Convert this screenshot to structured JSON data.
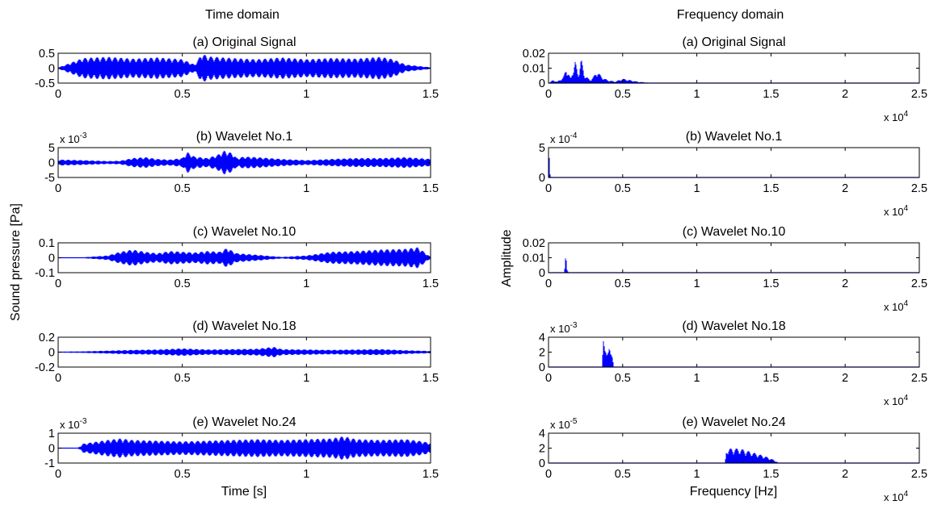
{
  "headers": {
    "time": "Time domain",
    "frequency": "Frequency domain"
  },
  "axis_labels": {
    "time_y": "Sound pressure [Pa]",
    "time_x": "Time [s]",
    "freq_y": "Amplitude",
    "freq_x": "Frequency [Hz]"
  },
  "colors": {
    "signal": "#0000ff",
    "axes": "#000000"
  },
  "chart_data": [
    {
      "type": "area",
      "panel": "time",
      "title": "(a) Original Signal",
      "multiplier": "",
      "xlim": [
        0,
        1.5
      ],
      "xticks": [
        "0",
        "0.5",
        "1",
        "1.5"
      ],
      "ylim": [
        -0.5,
        0.5
      ],
      "yticks": [
        "-0.5",
        "0",
        "0.5"
      ],
      "x_multiplier": "",
      "envelope": {
        "x": [
          0,
          0.1,
          0.2,
          0.3,
          0.4,
          0.5,
          0.55,
          0.58,
          0.6,
          0.7,
          0.8,
          0.9,
          1.0,
          1.1,
          1.2,
          1.3,
          1.35,
          1.4,
          1.5
        ],
        "y": [
          0.02,
          0.34,
          0.38,
          0.32,
          0.36,
          0.3,
          0.12,
          0.5,
          0.4,
          0.34,
          0.3,
          0.36,
          0.3,
          0.34,
          0.32,
          0.38,
          0.3,
          0.12,
          0.03
        ]
      }
    },
    {
      "type": "area",
      "panel": "freq",
      "title": "(a) Original Signal",
      "multiplier": "",
      "xlim": [
        0,
        25000
      ],
      "xticks": [
        "0",
        "0.5",
        "1",
        "1.5",
        "2",
        "2.5"
      ],
      "ylim": [
        0,
        0.02
      ],
      "yticks": [
        "0",
        "0.01",
        "0.02"
      ],
      "x_multiplier": "x 10^4",
      "envelope": {
        "x": [
          0,
          300,
          600,
          1000,
          1200,
          1500,
          1800,
          2000,
          2200,
          2400,
          2800,
          3000,
          3300,
          3600,
          4000,
          4500,
          5000,
          5500,
          6000,
          7000,
          25000
        ],
        "y": [
          0,
          0.002,
          0.001,
          0.004,
          0.01,
          0.003,
          0.015,
          0.005,
          0.017,
          0.006,
          0.002,
          0.004,
          0.008,
          0.004,
          0.002,
          0.001,
          0.003,
          0.002,
          0.001,
          0,
          0
        ]
      }
    },
    {
      "type": "area",
      "panel": "time",
      "title": "(b) Wavelet No.1",
      "multiplier": "x 10^-3",
      "xlim": [
        0,
        1.5
      ],
      "xticks": [
        "0",
        "0.5",
        "1",
        "1.5"
      ],
      "ylim": [
        -5,
        5
      ],
      "yticks": [
        "-5",
        "0",
        "5"
      ],
      "x_multiplier": "",
      "envelope": {
        "x": [
          0,
          0.1,
          0.2,
          0.25,
          0.3,
          0.35,
          0.4,
          0.45,
          0.5,
          0.52,
          0.55,
          0.6,
          0.64,
          0.67,
          0.7,
          0.72,
          0.75,
          0.8,
          0.9,
          1.0,
          1.1,
          1.2,
          1.3,
          1.4,
          1.5
        ],
        "y": [
          1,
          0.8,
          0.5,
          0.6,
          1.5,
          1.8,
          1.2,
          1.0,
          1.5,
          3.5,
          2.0,
          1.5,
          2.5,
          4.0,
          3.2,
          1.5,
          2.0,
          1.8,
          1.2,
          0.8,
          1.2,
          1.5,
          1.5,
          1.8,
          1.2
        ]
      }
    },
    {
      "type": "area",
      "panel": "freq",
      "title": "(b) Wavelet No.1",
      "multiplier": "x 10^-4",
      "xlim": [
        0,
        25000
      ],
      "xticks": [
        "0",
        "0.5",
        "1",
        "1.5",
        "2",
        "2.5"
      ],
      "ylim": [
        0,
        5
      ],
      "yticks": [
        "0",
        "5"
      ],
      "x_multiplier": "x 10^4",
      "envelope": {
        "x": [
          0,
          50,
          100,
          150,
          200,
          25000
        ],
        "y": [
          4.6,
          4.6,
          1.0,
          0.2,
          0,
          0
        ]
      }
    },
    {
      "type": "area",
      "panel": "time",
      "title": "(c) Wavelet No.10",
      "multiplier": "",
      "xlim": [
        0,
        1.5
      ],
      "xticks": [
        "0",
        "0.5",
        "1",
        "1.5"
      ],
      "ylim": [
        -0.1,
        0.1
      ],
      "yticks": [
        "-0.1",
        "0",
        "0.1"
      ],
      "x_multiplier": "",
      "envelope": {
        "x": [
          0,
          0.1,
          0.2,
          0.25,
          0.3,
          0.35,
          0.4,
          0.45,
          0.5,
          0.55,
          0.6,
          0.65,
          0.68,
          0.72,
          0.8,
          0.9,
          1.0,
          1.1,
          1.2,
          1.3,
          1.4,
          1.45,
          1.5
        ],
        "y": [
          0,
          0.003,
          0.015,
          0.04,
          0.055,
          0.04,
          0.03,
          0.045,
          0.04,
          0.035,
          0.045,
          0.04,
          0.065,
          0.03,
          0.02,
          0.005,
          0.015,
          0.04,
          0.045,
          0.055,
          0.06,
          0.07,
          0.005
        ]
      }
    },
    {
      "type": "area",
      "panel": "freq",
      "title": "(c) Wavelet No.10",
      "multiplier": "",
      "xlim": [
        0,
        25000
      ],
      "xticks": [
        "0",
        "0.5",
        "1",
        "1.5",
        "2",
        "2.5"
      ],
      "ylim": [
        0,
        0.02
      ],
      "yticks": [
        "0",
        "0.01",
        "0.02"
      ],
      "x_multiplier": "x 10^4",
      "envelope": {
        "x": [
          0,
          1050,
          1100,
          1150,
          1200,
          1250,
          1350,
          25000
        ],
        "y": [
          0,
          0,
          0.004,
          0.011,
          0.008,
          0.002,
          0,
          0
        ]
      }
    },
    {
      "type": "area",
      "panel": "time",
      "title": "(d) Wavelet No.18",
      "multiplier": "",
      "xlim": [
        0,
        1.5
      ],
      "xticks": [
        "0",
        "0.5",
        "1",
        "1.5"
      ],
      "ylim": [
        -0.2,
        0.2
      ],
      "yticks": [
        "-0.2",
        "0",
        "0.2"
      ],
      "x_multiplier": "",
      "envelope": {
        "x": [
          0,
          0.1,
          0.2,
          0.3,
          0.4,
          0.5,
          0.6,
          0.7,
          0.8,
          0.87,
          0.9,
          1.0,
          1.1,
          1.2,
          1.3,
          1.4,
          1.5
        ],
        "y": [
          0.005,
          0.01,
          0.02,
          0.03,
          0.035,
          0.05,
          0.035,
          0.04,
          0.045,
          0.07,
          0.04,
          0.035,
          0.03,
          0.035,
          0.04,
          0.025,
          0.015
        ]
      }
    },
    {
      "type": "area",
      "panel": "freq",
      "title": "(d) Wavelet No.18",
      "multiplier": "x 10^-3",
      "xlim": [
        0,
        25000
      ],
      "xticks": [
        "0",
        "0.5",
        "1",
        "1.5",
        "2",
        "2.5"
      ],
      "ylim": [
        0,
        4
      ],
      "yticks": [
        "0",
        "2",
        "4"
      ],
      "x_multiplier": "x 10^4",
      "envelope": {
        "x": [
          0,
          3600,
          3700,
          3800,
          3900,
          4000,
          4100,
          4200,
          4300,
          4400,
          25000
        ],
        "y": [
          0,
          0,
          3.5,
          2.4,
          2.9,
          2.0,
          2.5,
          1.8,
          2.2,
          0,
          0
        ]
      }
    },
    {
      "type": "area",
      "panel": "time",
      "title": "(e) Wavelet No.24",
      "multiplier": "x 10^-3",
      "xlim": [
        0,
        1.5
      ],
      "xticks": [
        "0",
        "0.5",
        "1",
        "1.5"
      ],
      "ylim": [
        -1,
        1
      ],
      "yticks": [
        "-1",
        "0",
        "1"
      ],
      "x_multiplier": "",
      "envelope": {
        "x": [
          0,
          0.08,
          0.1,
          0.2,
          0.25,
          0.3,
          0.4,
          0.5,
          0.6,
          0.7,
          0.8,
          0.9,
          1.0,
          1.1,
          1.15,
          1.2,
          1.3,
          1.4,
          1.45,
          1.5
        ],
        "y": [
          0,
          0.02,
          0.3,
          0.55,
          0.65,
          0.55,
          0.5,
          0.45,
          0.5,
          0.55,
          0.6,
          0.55,
          0.6,
          0.65,
          0.8,
          0.6,
          0.55,
          0.6,
          0.5,
          0.35
        ]
      }
    },
    {
      "type": "area",
      "panel": "freq",
      "title": "(e) Wavelet No.24",
      "multiplier": "x 10^-5",
      "xlim": [
        0,
        25000
      ],
      "xticks": [
        "0",
        "0.5",
        "1",
        "1.5",
        "2",
        "2.5"
      ],
      "ylim": [
        0,
        4
      ],
      "yticks": [
        "0",
        "2",
        "4"
      ],
      "x_multiplier": "x 10^4",
      "envelope": {
        "x": [
          0,
          11900,
          12000,
          12500,
          13000,
          13500,
          14000,
          14500,
          15000,
          15400,
          15500,
          25000
        ],
        "y": [
          0,
          0,
          1.9,
          2.0,
          1.9,
          1.6,
          1.3,
          1.0,
          0.6,
          0.2,
          0,
          0
        ]
      }
    }
  ]
}
